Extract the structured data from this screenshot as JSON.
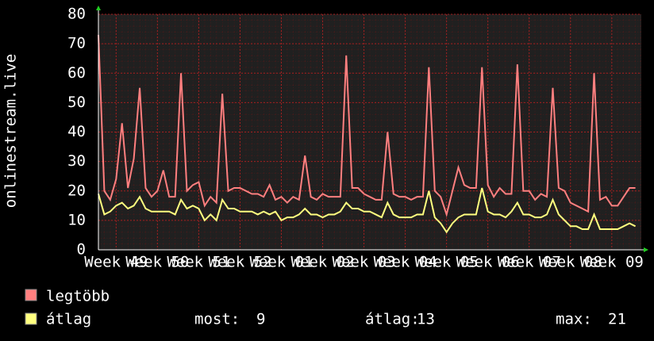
{
  "chart_data": {
    "type": "line",
    "y_label": "onlinestream.live",
    "x": [
      0,
      1,
      2,
      3,
      4,
      5,
      6,
      7,
      8,
      9,
      10,
      11,
      12,
      13,
      14,
      15,
      16,
      17,
      18,
      19,
      20,
      21,
      22,
      23,
      24,
      25,
      26,
      27,
      28,
      29,
      30,
      31,
      32,
      33,
      34,
      35,
      36,
      37,
      38,
      39,
      40,
      41,
      42,
      43,
      44,
      45,
      46,
      47,
      48,
      49,
      50,
      51,
      52,
      53,
      54,
      55,
      56,
      57,
      58,
      59,
      60,
      61,
      62,
      63,
      64,
      65,
      66,
      67,
      68,
      69,
      70,
      71,
      72,
      73,
      74,
      75,
      76,
      77,
      78,
      79,
      80,
      81,
      82,
      83,
      84,
      85,
      86,
      87,
      88,
      89,
      90,
      91
    ],
    "series": [
      {
        "name": "legtöbb",
        "color": "#ff7f7f",
        "values": [
          73,
          20,
          17,
          24,
          43,
          21,
          31,
          55,
          21,
          18,
          20,
          27,
          18,
          18,
          60,
          20,
          22,
          23,
          15,
          18,
          16,
          53,
          20,
          21,
          21,
          20,
          19,
          19,
          18,
          22,
          17,
          18,
          16,
          18,
          17,
          32,
          18,
          17,
          19,
          18,
          18,
          18,
          66,
          21,
          21,
          19,
          18,
          17,
          17,
          40,
          19,
          18,
          18,
          17,
          18,
          18,
          62,
          20,
          18,
          12,
          20,
          28,
          22,
          21,
          21,
          62,
          22,
          18,
          21,
          19,
          19,
          63,
          20,
          20,
          17,
          19,
          18,
          55,
          21,
          20,
          16,
          15,
          14,
          13,
          60,
          17,
          18,
          15,
          15,
          18,
          21,
          21
        ]
      },
      {
        "name": "átlag",
        "color": "#ffff7f",
        "values": [
          19,
          12,
          13,
          15,
          16,
          14,
          15,
          18,
          14,
          13,
          13,
          13,
          13,
          12,
          17,
          14,
          15,
          14,
          10,
          12,
          10,
          17,
          14,
          14,
          13,
          13,
          13,
          12,
          13,
          12,
          13,
          10,
          11,
          11,
          12,
          14,
          12,
          12,
          11,
          12,
          12,
          13,
          16,
          14,
          14,
          13,
          13,
          12,
          11,
          16,
          12,
          11,
          11,
          11,
          12,
          12,
          20,
          11,
          9,
          6,
          9,
          11,
          12,
          12,
          12,
          21,
          13,
          12,
          12,
          11,
          13,
          16,
          12,
          12,
          11,
          11,
          12,
          17,
          12,
          10,
          8,
          8,
          7,
          7,
          12,
          7,
          7,
          7,
          7,
          8,
          9,
          8
        ]
      }
    ],
    "stats": [
      {
        "label": "most:",
        "value": 9
      },
      {
        "label": "átlag:",
        "value": 13
      },
      {
        "label": "max:",
        "value": 21
      }
    ],
    "xlim": [
      0,
      92
    ],
    "xticks": [
      {
        "value": 3,
        "label": "Week 49"
      },
      {
        "value": 10,
        "label": "Week 50"
      },
      {
        "value": 17,
        "label": "Week 51"
      },
      {
        "value": 24,
        "label": "Week 52"
      },
      {
        "value": 31,
        "label": "Week 01"
      },
      {
        "value": 38,
        "label": "Week 02"
      },
      {
        "value": 45,
        "label": "Week 03"
      },
      {
        "value": 52,
        "label": "Week 04"
      },
      {
        "value": 59,
        "label": "Week 05"
      },
      {
        "value": 66,
        "label": "Week 06"
      },
      {
        "value": 73,
        "label": "Week 07"
      },
      {
        "value": 80,
        "label": "Week 08"
      },
      {
        "value": 87,
        "label": "Week 09"
      }
    ],
    "ylim": [
      0,
      80
    ],
    "yticks": [
      0,
      10,
      20,
      30,
      40,
      50,
      60,
      70,
      80
    ],
    "grid": true
  }
}
